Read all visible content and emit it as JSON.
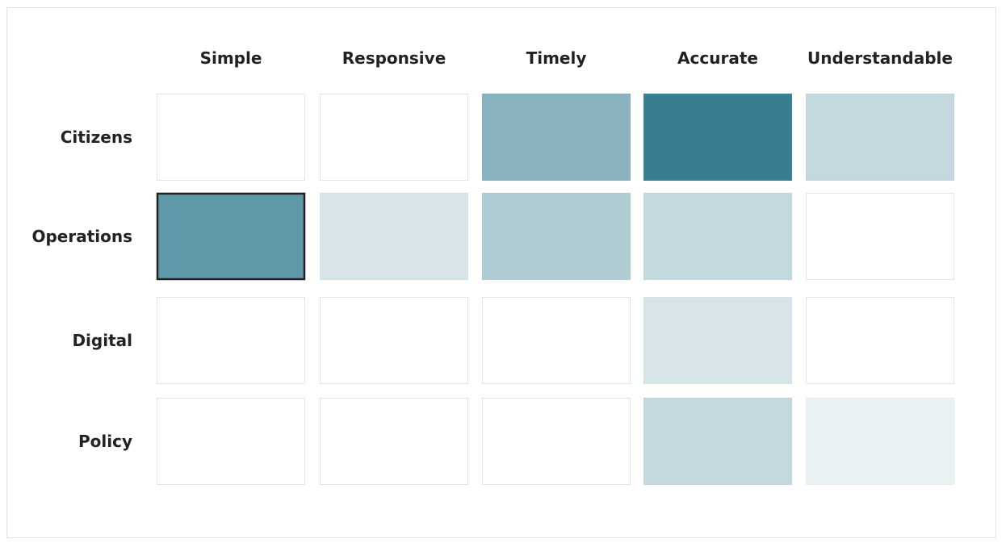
{
  "chart_data": {
    "type": "heatmap",
    "columns": [
      "Simple",
      "Responsive",
      "Timely",
      "Accurate",
      "Understandable"
    ],
    "rows": [
      "Citizens",
      "Operations",
      "Digital",
      "Policy"
    ],
    "values": [
      [
        0,
        0,
        3,
        5,
        1.5
      ],
      [
        4,
        1,
        2,
        1.5,
        0
      ],
      [
        0,
        0,
        0,
        1,
        0
      ],
      [
        0,
        0,
        0,
        1.5,
        0.5
      ]
    ],
    "selected": {
      "row": 1,
      "col": 0
    },
    "colors": {
      "empty": "#ffffff",
      "base": "#377e93",
      "cell_border": "#e3e3e3",
      "selected_border": "#222222",
      "label": "#222222"
    },
    "scale_max": 5
  }
}
